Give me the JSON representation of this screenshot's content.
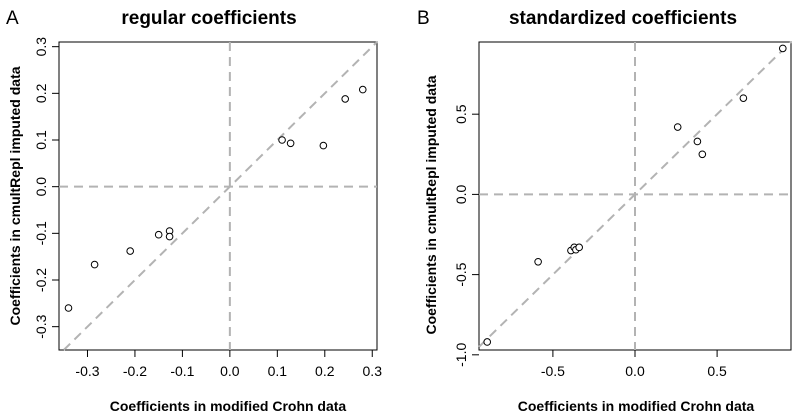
{
  "chart_data": [
    {
      "type": "scatter",
      "panel_label": "A",
      "title": "regular coefficients",
      "xlabel": "Coefficients in modified Crohn data",
      "ylabel": "Coefficients in cmultRepl imputed data",
      "xlim": [
        -0.36,
        0.31
      ],
      "ylim": [
        -0.35,
        0.31
      ],
      "xticks": [
        -0.3,
        -0.2,
        -0.1,
        0.0,
        0.1,
        0.2,
        0.3
      ],
      "xtick_labels": [
        "-0.3",
        "-0.2",
        "-0.1",
        "0.0",
        "0.1",
        "0.2",
        "0.3"
      ],
      "yticks": [
        -0.3,
        -0.2,
        -0.1,
        0.0,
        0.1,
        0.2,
        0.3
      ],
      "ytick_labels": [
        "-0.3",
        "-0.2",
        "-0.1",
        "0.0",
        "0.1",
        "0.2",
        "0.3"
      ],
      "reference_lines": [
        "y = x",
        "x = 0",
        "y = 0"
      ],
      "marker": "open circle",
      "line_color": "#b3b3b3",
      "points": [
        {
          "x": -0.34,
          "y": -0.26
        },
        {
          "x": -0.285,
          "y": -0.167
        },
        {
          "x": -0.21,
          "y": -0.138
        },
        {
          "x": -0.15,
          "y": -0.103
        },
        {
          "x": -0.127,
          "y": -0.095
        },
        {
          "x": -0.127,
          "y": -0.107
        },
        {
          "x": 0.11,
          "y": 0.1
        },
        {
          "x": 0.128,
          "y": 0.093
        },
        {
          "x": 0.197,
          "y": 0.088
        },
        {
          "x": 0.243,
          "y": 0.188
        },
        {
          "x": 0.28,
          "y": 0.208
        }
      ]
    },
    {
      "type": "scatter",
      "panel_label": "B",
      "title": "standardized coefficients",
      "xlabel": "Coefficients in modified Crohn data",
      "ylabel": "Coefficients in cmultRepl imputed data",
      "xlim": [
        -0.95,
        0.95
      ],
      "ylim": [
        -0.97,
        0.95
      ],
      "xticks": [
        -0.5,
        0.0,
        0.5
      ],
      "xtick_labels": [
        "-0.5",
        "0.0",
        "0.5"
      ],
      "yticks": [
        -1.0,
        -0.5,
        0.0,
        0.5
      ],
      "ytick_labels": [
        "-1.0",
        "-0.5",
        "0.0",
        "0.5"
      ],
      "reference_lines": [
        "y = x",
        "x = 0",
        "y = 0"
      ],
      "marker": "open circle",
      "line_color": "#b3b3b3",
      "points": [
        {
          "x": -0.9,
          "y": -0.92
        },
        {
          "x": -0.59,
          "y": -0.42
        },
        {
          "x": -0.39,
          "y": -0.35
        },
        {
          "x": -0.37,
          "y": -0.33
        },
        {
          "x": -0.36,
          "y": -0.345
        },
        {
          "x": -0.34,
          "y": -0.33
        },
        {
          "x": 0.26,
          "y": 0.42
        },
        {
          "x": 0.38,
          "y": 0.33
        },
        {
          "x": 0.41,
          "y": 0.25
        },
        {
          "x": 0.66,
          "y": 0.6
        },
        {
          "x": 0.9,
          "y": 0.91
        }
      ]
    }
  ]
}
